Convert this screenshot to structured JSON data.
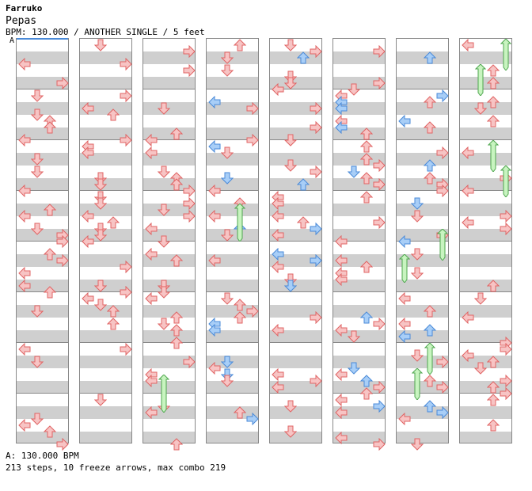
{
  "header": {
    "artist": "Farruko",
    "title": "Pepas",
    "info": "BPM: 130.000 / ANOTHER SINGLE / 5 feet",
    "marker": "A"
  },
  "footer": {
    "bpm": "A: 130.000 BPM",
    "stats": "213 steps, 10 freeze arrows, max combo 219"
  },
  "colors": {
    "red_fill": "#f7c4c4",
    "red_stroke": "#e06464",
    "blue_fill": "#a8cef7",
    "blue_stroke": "#4a8ad8",
    "freeze_fill": "#c8f4c0",
    "freeze_stroke": "#4ea64e",
    "row_gray": "#cfcfcf"
  },
  "chart": {
    "columns": 8,
    "measures_per_column": 8,
    "lanes": [
      "left",
      "down",
      "up",
      "right"
    ],
    "notes": [
      [
        [
          0,
          16,
          "L",
          "r"
        ],
        [
          1,
          16,
          "D",
          "r"
        ],
        [
          0,
          40,
          "R",
          "r"
        ],
        [
          2,
          40,
          "L",
          "r"
        ],
        [
          0,
          72,
          "L",
          "r"
        ],
        [
          1,
          72,
          "R",
          "r"
        ],
        [
          0,
          104,
          "R",
          "r"
        ],
        [
          1,
          104,
          "D",
          "r"
        ],
        [
          1,
          120,
          "D",
          "r"
        ],
        [
          1,
          128,
          "U",
          "r"
        ],
        [
          0,
          136,
          "D",
          "r"
        ],
        [
          0,
          168,
          "U",
          "r"
        ],
        [
          1,
          168,
          "R",
          "r"
        ],
        [
          2,
          184,
          "L",
          "r"
        ],
        [
          0,
          200,
          "D",
          "r"
        ],
        [
          1,
          200,
          "R",
          "r"
        ],
        [
          0,
          232,
          "D",
          "r"
        ],
        [
          1,
          232,
          "U",
          "r"
        ],
        [
          0,
          264,
          "D",
          "r"
        ],
        [
          0,
          264,
          "U",
          "r"
        ],
        [
          1,
          264,
          "L",
          "r"
        ],
        [
          0,
          296,
          "L",
          "r"
        ],
        [
          1,
          280,
          "D",
          "r"
        ],
        [
          1,
          296,
          "U",
          "r"
        ],
        [
          1,
          312,
          "D",
          "r"
        ],
        [
          0,
          328,
          "D",
          "r"
        ],
        [
          1,
          328,
          "U",
          "r"
        ],
        [
          0,
          360,
          "U",
          "r"
        ],
        [
          1,
          360,
          "D",
          "r"
        ],
        [
          0,
          376,
          "D",
          "r"
        ],
        [
          1,
          376,
          "L",
          "r"
        ],
        [
          0,
          392,
          "U",
          "r"
        ],
        [
          1,
          392,
          "D",
          "r"
        ],
        [
          0,
          424,
          "R",
          "r"
        ],
        [
          1,
          408,
          "R",
          "r"
        ],
        [
          0,
          456,
          "L",
          "r"
        ],
        [
          1,
          456,
          "D",
          "r"
        ],
        [
          0,
          488,
          "D",
          "r"
        ],
        [
          0,
          504,
          "U",
          "r"
        ],
        [
          1,
          504,
          "L",
          "r"
        ]
      ],
      [
        [
          0,
          16,
          "D",
          "r"
        ],
        [
          0,
          24,
          "L",
          "r"
        ],
        [
          0,
          40,
          "U",
          "r"
        ],
        [
          0,
          48,
          "D",
          "b"
        ],
        [
          1,
          48,
          "U",
          "b"
        ],
        [
          0,
          56,
          "U",
          "r"
        ],
        [
          1,
          56,
          "D",
          "b"
        ],
        [
          0,
          72,
          "D",
          "r"
        ],
        [
          0,
          72,
          "L",
          "r"
        ],
        [
          1,
          72,
          "R",
          "r"
        ],
        [
          0,
          88,
          "L",
          "r"
        ],
        [
          1,
          88,
          "D",
          "r"
        ],
        [
          0,
          104,
          "R",
          "r"
        ],
        [
          1,
          104,
          "L",
          "b"
        ],
        [
          0,
          112,
          "D",
          "r"
        ],
        [
          1,
          112,
          "U",
          "b"
        ],
        [
          0,
          120,
          "L",
          "r"
        ],
        [
          1,
          120,
          "D",
          "r"
        ],
        [
          0,
          128,
          "L",
          "b"
        ],
        [
          1,
          128,
          "R",
          "r"
        ],
        [
          0,
          136,
          "R",
          "r"
        ],
        [
          1,
          136,
          "D",
          "r"
        ],
        [
          0,
          152,
          "D",
          "r"
        ],
        [
          1,
          152,
          "U",
          "r"
        ],
        [
          0,
          168,
          "U",
          "r"
        ],
        [
          1,
          168,
          "R",
          "r"
        ],
        [
          0,
          176,
          "L",
          "b"
        ],
        [
          1,
          176,
          "U",
          "r"
        ],
        [
          0,
          184,
          "D",
          "r"
        ],
        [
          1,
          184,
          "D",
          "b"
        ],
        [
          0,
          192,
          "U",
          "r"
        ],
        [
          1,
          192,
          "L",
          "r"
        ],
        [
          0,
          200,
          "U",
          "b"
        ],
        [
          0,
          216,
          "D",
          "r"
        ],
        [
          1,
          216,
          "U",
          "r"
        ],
        [
          0,
          232,
          "U",
          "r"
        ],
        [
          1,
          232,
          "L",
          "b"
        ],
        [
          0,
          248,
          "L",
          "r"
        ],
        [
          1,
          248,
          "D",
          "r"
        ],
        [
          0,
          264,
          "D",
          "r"
        ],
        [
          1,
          264,
          "U",
          "r"
        ],
        [
          0,
          280,
          "U",
          "r"
        ],
        [
          1,
          280,
          "L",
          "r"
        ],
        [
          0,
          296,
          "D",
          "r"
        ],
        [
          1,
          296,
          "R",
          "r"
        ],
        [
          0,
          312,
          "R",
          "r"
        ],
        [
          1,
          312,
          "D",
          "b"
        ],
        [
          0,
          328,
          "D",
          "r"
        ],
        [
          1,
          328,
          "L",
          "b"
        ],
        [
          0,
          344,
          "U",
          "r"
        ],
        [
          1,
          344,
          "D",
          "r"
        ],
        [
          0,
          360,
          "L",
          "b"
        ],
        [
          0,
          376,
          "D",
          "b"
        ],
        [
          1,
          376,
          "U",
          "r"
        ],
        [
          0,
          392,
          "U",
          "r"
        ],
        [
          1,
          392,
          "D",
          "r"
        ],
        [
          0,
          408,
          "R",
          "r"
        ],
        [
          1,
          408,
          "R",
          "r"
        ],
        [
          0,
          424,
          "D",
          "r"
        ],
        [
          1,
          424,
          "U",
          "r"
        ],
        [
          0,
          440,
          "L",
          "b"
        ],
        [
          1,
          440,
          "D",
          "b"
        ],
        [
          0,
          456,
          "R",
          "r"
        ],
        [
          1,
          456,
          "U",
          "r"
        ],
        [
          0,
          472,
          "U",
          "r"
        ],
        [
          1,
          472,
          "L",
          "b"
        ],
        [
          0,
          488,
          "D",
          "r"
        ],
        [
          1,
          488,
          "D",
          "b"
        ],
        [
          0,
          504,
          "D",
          "r"
        ],
        [
          1,
          504,
          "U",
          "r"
        ]
      ]
    ]
  }
}
